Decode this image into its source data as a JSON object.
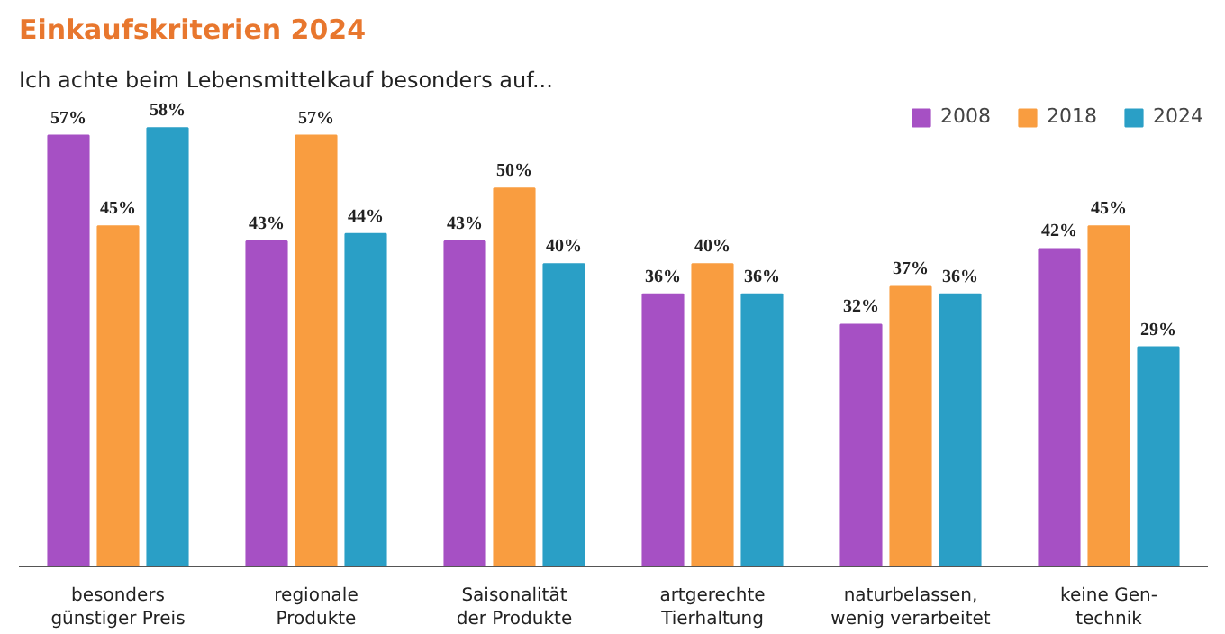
{
  "chart_data": {
    "type": "bar",
    "title": "Einkaufskriterien 2024",
    "subtitle": "Ich achte beim Lebensmittelkauf besonders auf...",
    "categories": [
      "besonders\ngünstiger Preis",
      "regionale\nProdukte",
      "Saisonalität\nder Produkte",
      "artgerechte\nTierhaltung",
      "naturbelassen,\nwenig verarbeitet",
      "keine Gen-\ntechnik"
    ],
    "series": [
      {
        "name": "2008",
        "color": "#a650c4",
        "values": [
          57,
          43,
          43,
          36,
          32,
          42
        ],
        "value_labels": [
          "57%",
          "43%",
          "43%",
          "36%",
          "32%",
          "42%"
        ]
      },
      {
        "name": "2018",
        "color": "#f99d40",
        "values": [
          45,
          57,
          50,
          40,
          37,
          45
        ],
        "value_labels": [
          "45%",
          "57%",
          "50%",
          "40%",
          "37%",
          "45%"
        ]
      },
      {
        "name": "2024",
        "color": "#2a9fc6",
        "values": [
          58,
          44,
          40,
          36,
          36,
          29
        ],
        "value_labels": [
          "58%",
          "44%",
          "40%",
          "36%",
          "36%",
          "29%"
        ]
      }
    ],
    "legend": "top right",
    "grid": false
  }
}
